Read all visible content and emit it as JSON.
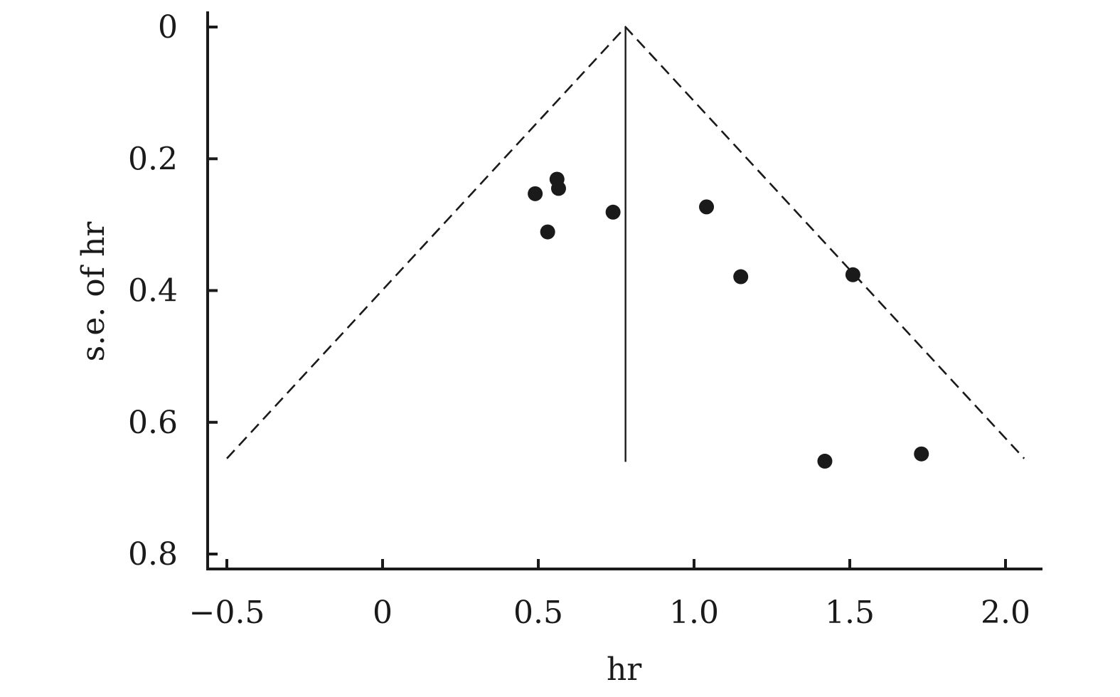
{
  "chart_data": {
    "type": "scatter",
    "xlabel": "hr",
    "ylabel": "s.e. of hr",
    "xlim": [
      -0.57,
      2.12
    ],
    "ylim": [
      0,
      0.82
    ],
    "y_inverted": true,
    "x_ticks": [
      -0.5,
      0,
      0.5,
      1.0,
      1.5,
      2.0
    ],
    "x_tick_labels": [
      "−0.5",
      "0",
      "0.5",
      "1.0",
      "1.5",
      "2.0"
    ],
    "y_ticks": [
      0,
      0.2,
      0.4,
      0.6,
      0.8
    ],
    "y_tick_labels": [
      "0",
      "0.2",
      "0.4",
      "0.6",
      "0.8"
    ],
    "pooled_estimate": 0.78,
    "estimate_line_se_range": [
      0,
      0.66
    ],
    "funnel_max_se": 0.655,
    "funnel_left_end": -0.5,
    "funnel_right_end": 2.06,
    "points": [
      {
        "x": 0.49,
        "y": 0.253
      },
      {
        "x": 0.56,
        "y": 0.231
      },
      {
        "x": 0.565,
        "y": 0.245
      },
      {
        "x": 0.53,
        "y": 0.311
      },
      {
        "x": 0.74,
        "y": 0.281
      },
      {
        "x": 1.04,
        "y": 0.273
      },
      {
        "x": 1.15,
        "y": 0.379
      },
      {
        "x": 1.51,
        "y": 0.376
      },
      {
        "x": 1.42,
        "y": 0.659
      },
      {
        "x": 1.73,
        "y": 0.648
      }
    ],
    "colors": {
      "ink": "#1a1a1a"
    },
    "grid": false,
    "legend": "none"
  }
}
